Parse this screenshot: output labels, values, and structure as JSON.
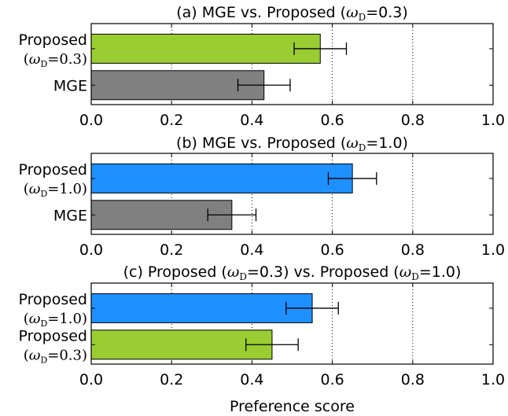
{
  "chart_data": [
    {
      "type": "bar",
      "orientation": "horizontal",
      "title": "(a) MGE vs. Proposed (ωD=0.3)",
      "title_parts": [
        {
          "text": "(a) MGE vs. Proposed (",
          "math": false
        },
        {
          "text": "ω",
          "math": true
        },
        {
          "text": "D",
          "sub": true
        },
        {
          "text": "=0.3",
          "math": false
        },
        {
          "text": ")",
          "math": false
        }
      ],
      "categories": [
        {
          "line1": "Proposed",
          "line2": "(ωD=0.3)",
          "line2_parts": [
            {
              "text": "(",
              "math": false
            },
            {
              "text": "ω",
              "math": true
            },
            {
              "text": "D",
              "sub": true
            },
            {
              "text": "=0.3)",
              "math": false
            }
          ]
        },
        {
          "line1": "MGE",
          "line2": ""
        }
      ],
      "values": [
        0.57,
        0.43
      ],
      "errors": [
        0.065,
        0.065
      ],
      "colors": [
        "#9acd32",
        "#808080"
      ],
      "xlim": [
        0.0,
        1.0
      ],
      "xticks": [
        "0.0",
        "0.2",
        "0.4",
        "0.6",
        "0.8",
        "1.0"
      ],
      "xtick_values": [
        0.0,
        0.2,
        0.4,
        0.6,
        0.8,
        1.0
      ],
      "grid": "vertical dotted"
    },
    {
      "type": "bar",
      "orientation": "horizontal",
      "title": "(b) MGE vs. Proposed (ωD=1.0)",
      "title_parts": [
        {
          "text": "(b) MGE vs. Proposed (",
          "math": false
        },
        {
          "text": "ω",
          "math": true
        },
        {
          "text": "D",
          "sub": true
        },
        {
          "text": "=1.0",
          "math": false
        },
        {
          "text": ")",
          "math": false
        }
      ],
      "categories": [
        {
          "line1": "Proposed",
          "line2": "(ωD=1.0)",
          "line2_parts": [
            {
              "text": "(",
              "math": false
            },
            {
              "text": "ω",
              "math": true
            },
            {
              "text": "D",
              "sub": true
            },
            {
              "text": "=1.0)",
              "math": false
            }
          ]
        },
        {
          "line1": "MGE",
          "line2": ""
        }
      ],
      "values": [
        0.65,
        0.35
      ],
      "errors": [
        0.06,
        0.06
      ],
      "colors": [
        "#1e90ff",
        "#808080"
      ],
      "xlim": [
        0.0,
        1.0
      ],
      "xticks": [
        "0.0",
        "0.2",
        "0.4",
        "0.6",
        "0.8",
        "1.0"
      ],
      "xtick_values": [
        0.0,
        0.2,
        0.4,
        0.6,
        0.8,
        1.0
      ],
      "grid": "vertical dotted"
    },
    {
      "type": "bar",
      "orientation": "horizontal",
      "title": "(c) Proposed (ωD=0.3) vs. Proposed (ωD=1.0)",
      "title_parts": [
        {
          "text": "(c) Proposed (",
          "math": false
        },
        {
          "text": "ω",
          "math": true
        },
        {
          "text": "D",
          "sub": true
        },
        {
          "text": "=0.3",
          "math": false
        },
        {
          "text": ") vs. Proposed (",
          "math": false
        },
        {
          "text": "ω",
          "math": true
        },
        {
          "text": "D",
          "sub": true
        },
        {
          "text": "=1.0",
          "math": false
        },
        {
          "text": ")",
          "math": false
        }
      ],
      "categories": [
        {
          "line1": "Proposed",
          "line2": "(ωD=1.0)",
          "line2_parts": [
            {
              "text": "(",
              "math": false
            },
            {
              "text": "ω",
              "math": true
            },
            {
              "text": "D",
              "sub": true
            },
            {
              "text": "=1.0)",
              "math": false
            }
          ]
        },
        {
          "line1": "Proposed",
          "line2": "(ωD=0.3)",
          "line2_parts": [
            {
              "text": "(",
              "math": false
            },
            {
              "text": "ω",
              "math": true
            },
            {
              "text": "D",
              "sub": true
            },
            {
              "text": "=0.3)",
              "math": false
            }
          ]
        }
      ],
      "values": [
        0.55,
        0.45
      ],
      "errors": [
        0.065,
        0.065
      ],
      "colors": [
        "#1e90ff",
        "#9acd32"
      ],
      "xlim": [
        0.0,
        1.0
      ],
      "xticks": [
        "0.0",
        "0.2",
        "0.4",
        "0.6",
        "0.8",
        "1.0"
      ],
      "xtick_values": [
        0.0,
        0.2,
        0.4,
        0.6,
        0.8,
        1.0
      ],
      "grid": "vertical dotted",
      "xlabel": "Preference score"
    }
  ]
}
